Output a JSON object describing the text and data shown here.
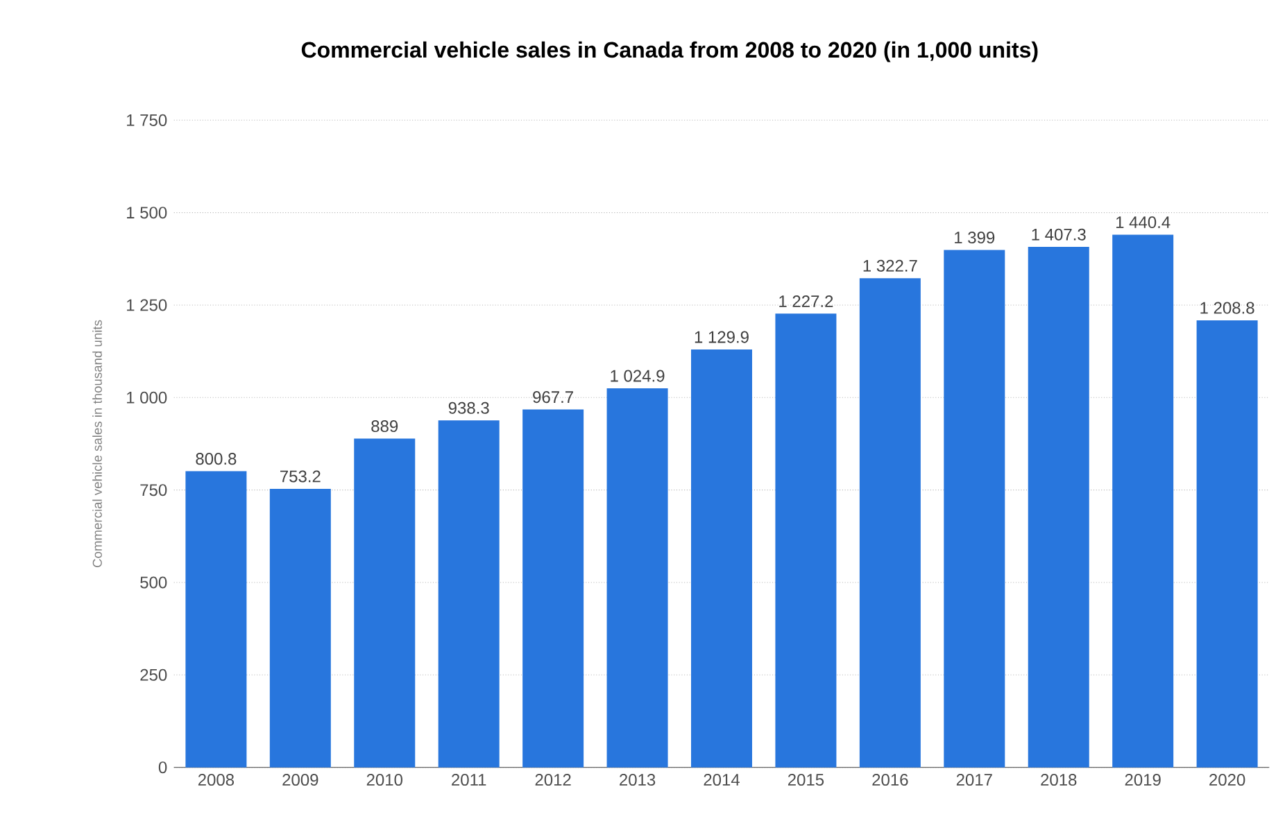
{
  "chart_data": {
    "type": "bar",
    "title": "Commercial vehicle sales in Canada from 2008 to 2020 (in 1,000 units)",
    "ylabel": "Commercial vehicle sales in thousand units",
    "categories": [
      "2008",
      "2009",
      "2010",
      "2011",
      "2012",
      "2013",
      "2014",
      "2015",
      "2016",
      "2017",
      "2018",
      "2019",
      "2020"
    ],
    "values": [
      800.8,
      753.2,
      889,
      938.3,
      967.7,
      1024.9,
      1129.9,
      1227.2,
      1322.7,
      1399,
      1407.3,
      1440.4,
      1208.8
    ],
    "value_labels": [
      "800.8",
      "753.2",
      "889",
      "938.3",
      "967.7",
      "1 024.9",
      "1 129.9",
      "1 227.2",
      "1 322.7",
      "1 399",
      "1 407.3",
      "1 440.4",
      "1 208.8"
    ],
    "color": "#2876dd",
    "ylim": [
      0,
      1750
    ],
    "yticks": [
      0,
      250,
      500,
      750,
      {
        "value": 1000,
        "label": "1 000"
      },
      {
        "value": 1250,
        "label": "1 250"
      },
      {
        "value": 1500,
        "label": "1 500"
      },
      {
        "value": 1750,
        "label": "1 750"
      }
    ],
    "grid": "y"
  }
}
